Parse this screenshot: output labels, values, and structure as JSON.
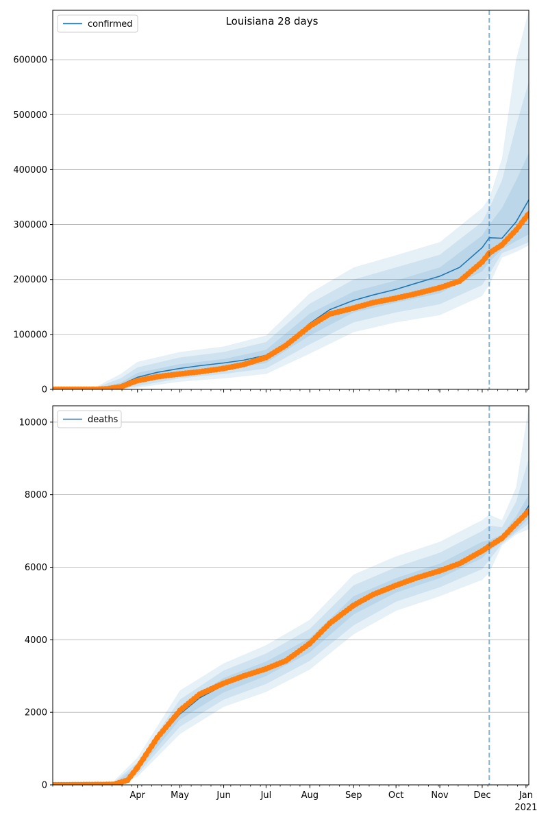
{
  "figure": {
    "title": "Louisiana 28 days"
  },
  "colors": {
    "model_line": "#1f77b4",
    "band": "#1f77b4",
    "observed": "#ff7f0e",
    "forecast_line": "#1f77b4",
    "grid": "#b0b0b0"
  },
  "chart_data": [
    {
      "type": "line",
      "panel": "top",
      "legend": {
        "label": "confirmed",
        "placement": "top-left"
      },
      "x_axis": {
        "start": "2020-02-01",
        "end": "2021-01-03",
        "tick_labels": [
          "Apr",
          "May",
          "Jun",
          "Jul",
          "Aug",
          "Sep",
          "Oct",
          "Nov",
          "Dec",
          "Jan"
        ],
        "tick_dates": [
          "2020-04-01",
          "2020-05-01",
          "2020-06-01",
          "2020-07-01",
          "2020-08-01",
          "2020-09-01",
          "2020-10-01",
          "2020-11-01",
          "2020-12-01",
          "2021-01-01"
        ],
        "year_label": "2021",
        "tick_labels_shown": false
      },
      "y_axis": {
        "ylim": [
          0,
          690000
        ],
        "ticks": [
          0,
          100000,
          200000,
          300000,
          400000,
          500000,
          600000
        ],
        "tick_labels": [
          "0",
          "100000",
          "200000",
          "300000",
          "400000",
          "500000",
          "600000"
        ],
        "grid": true
      },
      "forecast_start": "2020-12-06",
      "series": [
        {
          "role": "model",
          "name": "confirmed",
          "x": [
            "2020-02-01",
            "2020-03-01",
            "2020-03-10",
            "2020-03-20",
            "2020-04-01",
            "2020-04-15",
            "2020-05-01",
            "2020-05-15",
            "2020-06-01",
            "2020-06-15",
            "2020-07-01",
            "2020-07-15",
            "2020-08-01",
            "2020-08-15",
            "2020-09-01",
            "2020-09-15",
            "2020-10-01",
            "2020-10-15",
            "2020-11-01",
            "2020-11-15",
            "2020-12-01",
            "2020-12-06",
            "2020-12-15",
            "2020-12-25",
            "2021-01-03"
          ],
          "y": [
            0,
            500,
            2000,
            8000,
            22000,
            31000,
            38000,
            43000,
            48000,
            53000,
            62000,
            80000,
            120000,
            145000,
            162000,
            172000,
            182000,
            193000,
            206000,
            222000,
            258000,
            276000,
            275000,
            305000,
            345000
          ]
        },
        {
          "role": "observed",
          "x": [
            "2020-02-01",
            "2020-03-01",
            "2020-03-10",
            "2020-03-20",
            "2020-04-01",
            "2020-04-15",
            "2020-05-01",
            "2020-05-15",
            "2020-06-01",
            "2020-06-15",
            "2020-07-01",
            "2020-07-15",
            "2020-08-01",
            "2020-08-15",
            "2020-09-01",
            "2020-09-15",
            "2020-10-01",
            "2020-10-15",
            "2020-11-01",
            "2020-11-15",
            "2020-12-01",
            "2020-12-06",
            "2020-12-15",
            "2020-12-25",
            "2021-01-03"
          ],
          "y": [
            0,
            0,
            800,
            4500,
            16000,
            23000,
            28000,
            32000,
            38000,
            45000,
            58000,
            80000,
            115000,
            137000,
            148000,
            158000,
            166000,
            174000,
            185000,
            197000,
            232000,
            248000,
            263000,
            290000,
            320000
          ]
        }
      ],
      "uncertainty_bands": [
        {
          "x": [
            "2020-02-01",
            "2020-03-01",
            "2020-03-20",
            "2020-04-01",
            "2020-05-01",
            "2020-06-01",
            "2020-07-01",
            "2020-08-01",
            "2020-09-01",
            "2020-10-01",
            "2020-11-01",
            "2020-12-01",
            "2020-12-06",
            "2020-12-15",
            "2020-12-25",
            "2021-01-03"
          ],
          "lower": [
            0,
            0,
            2000,
            10000,
            27000,
            36000,
            48000,
            98000,
            140000,
            158000,
            175000,
            215000,
            232000,
            255000,
            270000,
            282000
          ],
          "upper": [
            0,
            800,
            12000,
            30000,
            46000,
            55000,
            72000,
            138000,
            178000,
            198000,
            222000,
            280000,
            300000,
            330000,
            380000,
            430000
          ]
        },
        {
          "x": [
            "2020-02-01",
            "2020-03-01",
            "2020-03-20",
            "2020-04-01",
            "2020-05-01",
            "2020-06-01",
            "2020-07-01",
            "2020-08-01",
            "2020-09-01",
            "2020-10-01",
            "2020-11-01",
            "2020-12-01",
            "2020-12-06",
            "2020-12-15",
            "2020-12-25",
            "2021-01-03"
          ],
          "lower": [
            0,
            0,
            1000,
            6000,
            20000,
            28000,
            38000,
            82000,
            122000,
            140000,
            155000,
            190000,
            210000,
            248000,
            258000,
            268000
          ],
          "upper": [
            0,
            1500,
            20000,
            40000,
            58000,
            68000,
            86000,
            156000,
            200000,
            222000,
            245000,
            305000,
            330000,
            380000,
            480000,
            560000
          ]
        },
        {
          "x": [
            "2020-02-01",
            "2020-03-01",
            "2020-03-20",
            "2020-04-01",
            "2020-05-01",
            "2020-06-01",
            "2020-07-01",
            "2020-08-01",
            "2020-09-01",
            "2020-10-01",
            "2020-11-01",
            "2020-12-01",
            "2020-12-06",
            "2020-12-15",
            "2020-12-25",
            "2021-01-03"
          ],
          "lower": [
            0,
            0,
            500,
            3000,
            14000,
            20000,
            28000,
            65000,
            104000,
            122000,
            135000,
            170000,
            190000,
            240000,
            250000,
            262000
          ],
          "upper": [
            0,
            2500,
            28000,
            50000,
            68000,
            78000,
            98000,
            175000,
            222000,
            244000,
            268000,
            330000,
            348000,
            420000,
            600000,
            690000
          ]
        }
      ]
    },
    {
      "type": "line",
      "panel": "bottom",
      "legend": {
        "label": "deaths",
        "placement": "top-left"
      },
      "x_axis": {
        "start": "2020-02-01",
        "end": "2021-01-03",
        "tick_labels": [
          "Apr",
          "May",
          "Jun",
          "Jul",
          "Aug",
          "Sep",
          "Oct",
          "Nov",
          "Dec",
          "Jan"
        ],
        "tick_dates": [
          "2020-04-01",
          "2020-05-01",
          "2020-06-01",
          "2020-07-01",
          "2020-08-01",
          "2020-09-01",
          "2020-10-01",
          "2020-11-01",
          "2020-12-01",
          "2021-01-01"
        ],
        "year_label": "2021",
        "tick_labels_shown": true
      },
      "y_axis": {
        "ylim": [
          0,
          10450
        ],
        "ticks": [
          0,
          2000,
          4000,
          6000,
          8000,
          10000
        ],
        "tick_labels": [
          "0",
          "2000",
          "4000",
          "6000",
          "8000",
          "10000"
        ],
        "grid": true
      },
      "forecast_start": "2020-12-06",
      "series": [
        {
          "role": "model",
          "name": "deaths",
          "x": [
            "2020-02-01",
            "2020-03-15",
            "2020-03-25",
            "2020-04-01",
            "2020-04-15",
            "2020-05-01",
            "2020-05-15",
            "2020-06-01",
            "2020-06-15",
            "2020-07-01",
            "2020-07-15",
            "2020-08-01",
            "2020-08-15",
            "2020-09-01",
            "2020-09-15",
            "2020-10-01",
            "2020-10-15",
            "2020-11-01",
            "2020-11-15",
            "2020-12-01",
            "2020-12-06",
            "2020-12-15",
            "2020-12-25",
            "2021-01-03"
          ],
          "y": [
            0,
            10,
            120,
            450,
            1250,
            1950,
            2400,
            2750,
            3000,
            3200,
            3420,
            3850,
            4400,
            4950,
            5250,
            5500,
            5700,
            5900,
            6100,
            6450,
            6580,
            6850,
            7150,
            7700
          ]
        },
        {
          "role": "observed",
          "x": [
            "2020-02-01",
            "2020-03-15",
            "2020-03-25",
            "2020-04-01",
            "2020-04-15",
            "2020-05-01",
            "2020-05-15",
            "2020-06-01",
            "2020-06-15",
            "2020-07-01",
            "2020-07-15",
            "2020-08-01",
            "2020-08-15",
            "2020-09-01",
            "2020-09-15",
            "2020-10-01",
            "2020-10-15",
            "2020-11-01",
            "2020-11-15",
            "2020-12-01",
            "2020-12-06",
            "2020-12-15",
            "2020-12-25",
            "2021-01-03"
          ],
          "y": [
            0,
            10,
            130,
            480,
            1300,
            2050,
            2500,
            2800,
            3000,
            3200,
            3420,
            3900,
            4450,
            4950,
            5250,
            5500,
            5700,
            5900,
            6100,
            6450,
            6580,
            6800,
            7200,
            7550
          ]
        }
      ],
      "uncertainty_bands": [
        {
          "x": [
            "2020-02-01",
            "2020-03-15",
            "2020-04-01",
            "2020-05-01",
            "2020-06-01",
            "2020-07-01",
            "2020-08-01",
            "2020-09-01",
            "2020-10-01",
            "2020-11-01",
            "2020-12-01",
            "2020-12-06",
            "2020-12-15",
            "2020-12-25",
            "2021-01-03"
          ],
          "lower": [
            0,
            0,
            380,
            1800,
            2550,
            3000,
            3650,
            4700,
            5300,
            5700,
            6250,
            6450,
            6700,
            7000,
            7350
          ],
          "upper": [
            0,
            30,
            520,
            2150,
            2950,
            3400,
            4050,
            5200,
            5700,
            6100,
            6700,
            6750,
            6900,
            7400,
            8000
          ]
        },
        {
          "x": [
            "2020-02-01",
            "2020-03-15",
            "2020-04-01",
            "2020-05-01",
            "2020-06-01",
            "2020-07-01",
            "2020-08-01",
            "2020-09-01",
            "2020-10-01",
            "2020-11-01",
            "2020-12-01",
            "2020-12-06",
            "2020-12-15",
            "2020-12-25",
            "2021-01-03"
          ],
          "lower": [
            0,
            0,
            300,
            1600,
            2350,
            2780,
            3420,
            4400,
            5050,
            5450,
            5950,
            6200,
            6650,
            6950,
            7200
          ],
          "upper": [
            0,
            60,
            620,
            2350,
            3150,
            3620,
            4300,
            5500,
            6000,
            6400,
            7000,
            7150,
            7100,
            7800,
            9000
          ]
        },
        {
          "x": [
            "2020-02-01",
            "2020-03-15",
            "2020-04-01",
            "2020-05-01",
            "2020-06-01",
            "2020-07-01",
            "2020-08-01",
            "2020-09-01",
            "2020-10-01",
            "2020-11-01",
            "2020-12-01",
            "2020-12-06",
            "2020-12-15",
            "2020-12-25",
            "2021-01-03"
          ],
          "lower": [
            0,
            0,
            220,
            1400,
            2150,
            2560,
            3180,
            4150,
            4800,
            5200,
            5650,
            5850,
            6600,
            6900,
            7050
          ],
          "upper": [
            0,
            100,
            750,
            2600,
            3350,
            3850,
            4550,
            5800,
            6300,
            6700,
            7300,
            7450,
            7300,
            8200,
            10450
          ]
        }
      ]
    }
  ]
}
